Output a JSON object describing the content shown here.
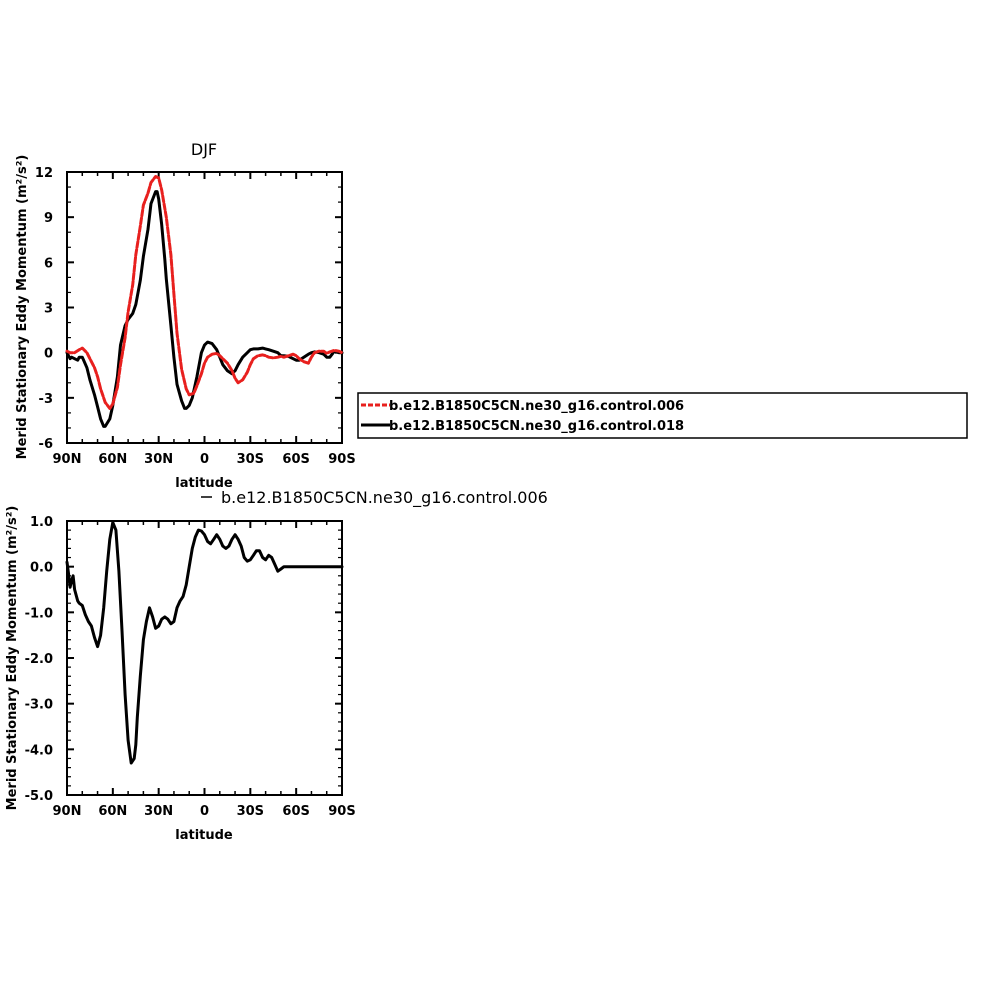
{
  "chart_data": [
    {
      "type": "line",
      "title": "DJF",
      "xlabel": "latitude",
      "ylabel": "Merid Stationary Eddy Momentum  (m²/s²)",
      "xlim": [
        90,
        -90
      ],
      "ylim": [
        -6,
        12
      ],
      "x_ticks": [
        90,
        60,
        30,
        0,
        -30,
        -60,
        -90
      ],
      "x_tick_labels": [
        "90N",
        "60N",
        "30N",
        "0",
        "30S",
        "60S",
        "90S"
      ],
      "y_ticks": [
        -6,
        -3,
        0,
        3,
        6,
        9,
        12
      ],
      "y_tick_labels": [
        "-6",
        "-3",
        "0",
        "3",
        "6",
        "9",
        "12"
      ],
      "legend": {
        "placement": "right",
        "entries": [
          {
            "label": "b.e12.B1850C5CN.ne30_g16.control.006",
            "color": "#e8201e",
            "style": "dashed"
          },
          {
            "label": "b.e12.B1850C5CN.ne30_g16.control.018",
            "color": "#000000",
            "style": "solid"
          }
        ]
      },
      "series": [
        {
          "name": "b.e12.B1850C5CN.ne30_g16.control.006",
          "color": "#e8201e",
          "x": [
            90,
            88,
            85,
            82,
            80,
            77,
            75,
            72,
            70,
            68,
            65,
            62,
            60,
            57,
            55,
            52,
            50,
            47,
            45,
            42,
            40,
            37,
            35,
            32,
            30,
            28,
            25,
            22,
            20,
            18,
            15,
            12,
            10,
            7,
            5,
            2,
            0,
            -2,
            -5,
            -8,
            -10,
            -12,
            -15,
            -18,
            -20,
            -22,
            -25,
            -28,
            -30,
            -32,
            -35,
            -38,
            -40,
            -42,
            -45,
            -48,
            -50,
            -52,
            -55,
            -58,
            -60,
            -62,
            -65,
            -68,
            -70,
            -72,
            -75,
            -78,
            -80,
            -82,
            -85,
            -88,
            -90
          ],
          "y": [
            0.1,
            0.0,
            0.0,
            0.2,
            0.3,
            0.0,
            -0.4,
            -1.0,
            -1.6,
            -2.4,
            -3.3,
            -3.7,
            -3.4,
            -2.3,
            -0.8,
            1.0,
            2.7,
            4.5,
            6.5,
            8.4,
            9.8,
            10.6,
            11.3,
            11.7,
            11.6,
            10.8,
            9.0,
            6.5,
            3.9,
            1.3,
            -1.1,
            -2.4,
            -2.8,
            -2.7,
            -2.2,
            -1.4,
            -0.7,
            -0.3,
            -0.1,
            -0.05,
            -0.2,
            -0.4,
            -0.7,
            -1.2,
            -1.7,
            -2.0,
            -1.8,
            -1.3,
            -0.8,
            -0.4,
            -0.2,
            -0.15,
            -0.2,
            -0.3,
            -0.35,
            -0.3,
            -0.25,
            -0.3,
            -0.2,
            -0.1,
            -0.2,
            -0.4,
            -0.6,
            -0.7,
            -0.3,
            0.0,
            0.1,
            0.1,
            -0.05,
            0.05,
            0.15,
            0.1,
            0.0
          ]
        },
        {
          "name": "b.e12.B1850C5CN.ne30_g16.control.018",
          "color": "#000000",
          "x": [
            90,
            89,
            88,
            87,
            85,
            83,
            82,
            80,
            77,
            75,
            72,
            70,
            68,
            66,
            65,
            62,
            60,
            57,
            55,
            52,
            50,
            47,
            45,
            42,
            40,
            37,
            35,
            32,
            31,
            30,
            28,
            26,
            25,
            22,
            20,
            18,
            15,
            13,
            12,
            10,
            8,
            5,
            2,
            0,
            -2,
            -5,
            -8,
            -10,
            -12,
            -15,
            -18,
            -20,
            -22,
            -25,
            -28,
            -30,
            -32,
            -35,
            -38,
            -40,
            -42,
            -45,
            -48,
            -50,
            -52,
            -55,
            -58,
            -60,
            -62,
            -65,
            -68,
            -70,
            -72,
            -75,
            -78,
            -80,
            -82,
            -85,
            -88,
            -90
          ],
          "y": [
            0.0,
            -0.2,
            -0.4,
            -0.3,
            -0.4,
            -0.5,
            -0.3,
            -0.3,
            -1.0,
            -1.8,
            -2.8,
            -3.6,
            -4.4,
            -4.9,
            -4.9,
            -4.4,
            -3.5,
            -1.6,
            0.5,
            1.8,
            2.2,
            2.6,
            3.2,
            4.8,
            6.4,
            8.2,
            9.9,
            10.7,
            10.7,
            10.2,
            8.5,
            6.2,
            4.9,
            1.8,
            -0.3,
            -2.1,
            -3.2,
            -3.7,
            -3.7,
            -3.5,
            -3.0,
            -1.6,
            0.0,
            0.5,
            0.7,
            0.6,
            0.2,
            -0.3,
            -0.8,
            -1.2,
            -1.4,
            -1.2,
            -0.8,
            -0.3,
            0.0,
            0.2,
            0.25,
            0.25,
            0.3,
            0.25,
            0.2,
            0.1,
            0.0,
            -0.2,
            -0.2,
            -0.25,
            -0.4,
            -0.5,
            -0.5,
            -0.3,
            -0.1,
            0.0,
            0.05,
            0.0,
            -0.1,
            -0.3,
            -0.3,
            0.1,
            0.0,
            0.0
          ]
        }
      ]
    },
    {
      "type": "line",
      "title": "",
      "xlabel": "latitude",
      "ylabel": "Merid Stationary Eddy Momentum  (m²/s²)",
      "xlim": [
        90,
        -90
      ],
      "ylim": [
        -5.0,
        1.0
      ],
      "x_ticks": [
        90,
        60,
        30,
        0,
        -30,
        -60,
        -90
      ],
      "x_tick_labels": [
        "90N",
        "60N",
        "30N",
        "0",
        "30S",
        "60S",
        "90S"
      ],
      "y_ticks": [
        1.0,
        0.0,
        -1.0,
        -2.0,
        -3.0,
        -4.0,
        -5.0
      ],
      "y_tick_labels": [
        "1.0",
        "0.0",
        "-1.0",
        "-2.0",
        "-3.0",
        "-4.0",
        "-5.0"
      ],
      "legend": {
        "placement": "top-right",
        "entries": [
          {
            "label": "b.e12.B1850C5CN.ne30_g16.control.006",
            "color": "#000000",
            "style": "solid"
          }
        ]
      },
      "series": [
        {
          "name": "b.e12.B1850C5CN.ne30_g16.control.006",
          "color": "#000000",
          "x": [
            90,
            89,
            88,
            87,
            86,
            85,
            83,
            82,
            80,
            78,
            76,
            74,
            72,
            70,
            68,
            66,
            64,
            62,
            60,
            58,
            56,
            54,
            52,
            50,
            48,
            46,
            45,
            44,
            42,
            40,
            38,
            36,
            34,
            32,
            30,
            28,
            26,
            24,
            22,
            20,
            18,
            16,
            14,
            12,
            10,
            8,
            6,
            4,
            2,
            0,
            -2,
            -4,
            -6,
            -8,
            -10,
            -12,
            -14,
            -16,
            -18,
            -20,
            -22,
            -24,
            -26,
            -28,
            -30,
            -32,
            -34,
            -36,
            -38,
            -40,
            -42,
            -44,
            -46,
            -48,
            -50,
            -52,
            -54,
            -56,
            -58,
            -60,
            -62,
            -64,
            -66,
            -68,
            -70,
            -72,
            -74,
            -76,
            -78,
            -80,
            -82,
            -84,
            -86,
            -88,
            -90
          ],
          "y": [
            0.1,
            -0.15,
            -0.45,
            -0.3,
            -0.2,
            -0.5,
            -0.75,
            -0.8,
            -0.85,
            -1.05,
            -1.2,
            -1.3,
            -1.55,
            -1.75,
            -1.5,
            -0.9,
            -0.1,
            0.6,
            0.97,
            0.8,
            -0.1,
            -1.4,
            -2.8,
            -3.8,
            -4.3,
            -4.2,
            -3.9,
            -3.3,
            -2.4,
            -1.6,
            -1.2,
            -0.9,
            -1.1,
            -1.35,
            -1.3,
            -1.15,
            -1.1,
            -1.15,
            -1.25,
            -1.2,
            -0.9,
            -0.75,
            -0.65,
            -0.4,
            0.0,
            0.4,
            0.65,
            0.8,
            0.78,
            0.7,
            0.55,
            0.5,
            0.6,
            0.7,
            0.6,
            0.45,
            0.4,
            0.45,
            0.6,
            0.7,
            0.6,
            0.45,
            0.2,
            0.12,
            0.15,
            0.25,
            0.35,
            0.35,
            0.2,
            0.15,
            0.25,
            0.2,
            0.05,
            -0.1,
            -0.05,
            0.0,
            0.0,
            0.0,
            0.0,
            0.0,
            0.0,
            0.0,
            0.0,
            0.0,
            0.0,
            0.0,
            0.0,
            0.0,
            0.0,
            0.0,
            0.0,
            0.0,
            0.0,
            0.0,
            0.0
          ]
        }
      ]
    }
  ]
}
